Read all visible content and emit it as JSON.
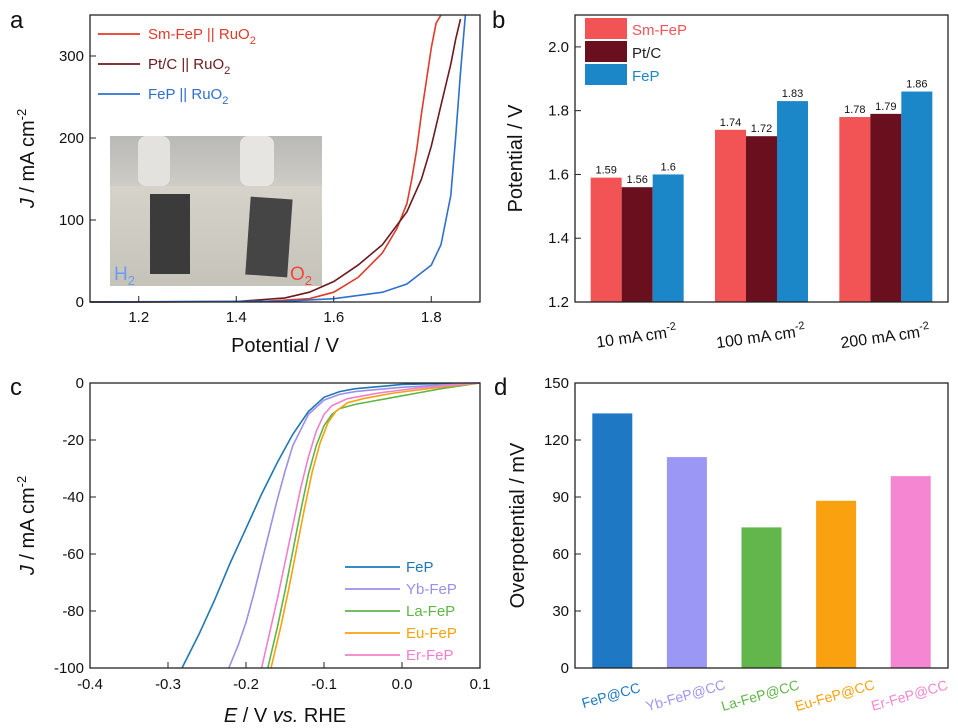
{
  "chart_data": [
    {
      "panel": "a",
      "type": "line",
      "xlabel": "Potential / V",
      "ylabel": {
        "italic": "J",
        "rest": " / mA cm",
        "sup": "-2"
      },
      "xlim": [
        1.1,
        1.9
      ],
      "ylim": [
        0,
        350
      ],
      "xticks": [
        "1.2",
        "1.4",
        "1.6",
        "1.8"
      ],
      "yticks": [
        "0",
        "100",
        "200",
        "300"
      ],
      "legend_position": "top-left",
      "series": [
        {
          "legend_main": "Sm-FeP || RuO",
          "legend_sub": "2",
          "color": "#e03a2a",
          "x": [
            1.1,
            1.45,
            1.55,
            1.6,
            1.65,
            1.7,
            1.73,
            1.75,
            1.76,
            1.77,
            1.78,
            1.79,
            1.8,
            1.81,
            1.82
          ],
          "y": [
            0,
            0.5,
            4,
            12,
            30,
            60,
            90,
            120,
            150,
            185,
            230,
            270,
            310,
            340,
            350
          ]
        },
        {
          "legend_main": "Pt/C || RuO",
          "legend_sub": "2",
          "color": "#6b1a1e",
          "x": [
            1.1,
            1.4,
            1.5,
            1.55,
            1.6,
            1.65,
            1.7,
            1.75,
            1.78,
            1.8,
            1.82,
            1.84,
            1.85,
            1.86
          ],
          "y": [
            0,
            0.5,
            5,
            12,
            25,
            45,
            70,
            110,
            150,
            190,
            240,
            290,
            320,
            345
          ]
        },
        {
          "legend_main": "FeP || RuO",
          "legend_sub": "2",
          "color": "#2f6fd0",
          "x": [
            1.1,
            1.5,
            1.6,
            1.7,
            1.75,
            1.8,
            1.82,
            1.84,
            1.85,
            1.86,
            1.87
          ],
          "y": [
            0,
            1,
            4,
            12,
            22,
            45,
            70,
            130,
            200,
            280,
            350
          ]
        }
      ],
      "inset": {
        "left_label": "H",
        "left_sub": "2",
        "right_label": "O",
        "right_sub": "2"
      }
    },
    {
      "panel": "b",
      "type": "bar",
      "ylabel": "Potential / V",
      "ylim": [
        1.2,
        2.1
      ],
      "yticks": [
        "1.2",
        "1.4",
        "1.6",
        "1.8",
        "2.0"
      ],
      "categories": [
        {
          "main": "10 mA cm",
          "sup": "-2"
        },
        {
          "main": "100 mA cm",
          "sup": "-2"
        },
        {
          "main": "200 mA cm",
          "sup": "-2"
        }
      ],
      "legend_position": "top-left",
      "series": [
        {
          "name": "Sm-FeP",
          "color": "#f25456",
          "values": [
            1.59,
            1.74,
            1.78
          ],
          "labels": [
            "1.59",
            "1.74",
            "1.78"
          ]
        },
        {
          "name": "Pt/C",
          "color": "#6a0f1e",
          "values": [
            1.56,
            1.72,
            1.79
          ],
          "labels": [
            "1.56",
            "1.72",
            "1.79"
          ]
        },
        {
          "name": "FeP",
          "color": "#1b87c9",
          "values": [
            1.6,
            1.83,
            1.86
          ],
          "labels": [
            "1.6",
            "1.83",
            "1.86"
          ]
        }
      ]
    },
    {
      "panel": "c",
      "type": "line",
      "xlabel": {
        "italic": "E",
        "rest": " / V ",
        "italic2": "vs.",
        "rest2": " RHE"
      },
      "ylabel": {
        "italic": "J",
        "rest": " / mA cm",
        "sup": "-2"
      },
      "xlim": [
        -0.4,
        0.1
      ],
      "ylim": [
        -100,
        0
      ],
      "xticks": [
        "-0.4",
        "-0.3",
        "-0.2",
        "-0.1",
        "0.0",
        "0.1"
      ],
      "yticks": [
        "0",
        "-20",
        "-40",
        "-60",
        "-80",
        "-100"
      ],
      "legend_position": "bottom-right",
      "series": [
        {
          "name": "FeP",
          "color": "#1f77b4",
          "x": [
            -0.282,
            -0.26,
            -0.24,
            -0.22,
            -0.2,
            -0.18,
            -0.16,
            -0.14,
            -0.12,
            -0.1,
            -0.08,
            -0.06,
            -0.04,
            -0.02,
            0.0,
            0.05,
            0.1
          ],
          "y": [
            -100,
            -88,
            -76,
            -63,
            -51,
            -39,
            -28,
            -18,
            -10,
            -5,
            -3,
            -2,
            -1.5,
            -1,
            -0.5,
            -0.2,
            0
          ]
        },
        {
          "name": "Yb-FeP",
          "color": "#9b8fe8",
          "x": [
            -0.222,
            -0.21,
            -0.2,
            -0.19,
            -0.18,
            -0.17,
            -0.16,
            -0.15,
            -0.14,
            -0.12,
            -0.1,
            -0.08,
            -0.06,
            -0.04,
            -0.02,
            0.0,
            0.05,
            0.1
          ],
          "y": [
            -100,
            -92,
            -84,
            -74,
            -63,
            -52,
            -41,
            -31,
            -22,
            -11,
            -6,
            -4,
            -3,
            -2.5,
            -2,
            -1.5,
            -0.7,
            0
          ]
        },
        {
          "name": "La-FeP",
          "color": "#5fb548",
          "x": [
            -0.172,
            -0.16,
            -0.15,
            -0.14,
            -0.13,
            -0.12,
            -0.11,
            -0.1,
            -0.09,
            -0.08,
            -0.06,
            -0.04,
            -0.02,
            0.0,
            0.02,
            0.05,
            0.1
          ],
          "y": [
            -100,
            -86,
            -73,
            -59,
            -45,
            -32,
            -22,
            -15,
            -11,
            -9,
            -7.5,
            -6.5,
            -5.5,
            -4.5,
            -3.5,
            -2,
            0
          ]
        },
        {
          "name": "Eu-FeP",
          "color": "#f5a20e",
          "x": [
            -0.168,
            -0.155,
            -0.145,
            -0.135,
            -0.125,
            -0.115,
            -0.105,
            -0.095,
            -0.085,
            -0.07,
            -0.05,
            -0.03,
            -0.01,
            0.01,
            0.04,
            0.07,
            0.1
          ],
          "y": [
            -100,
            -85,
            -72,
            -58,
            -44,
            -31,
            -21,
            -14,
            -10,
            -7,
            -5.5,
            -4.5,
            -3.5,
            -2.8,
            -1.8,
            -0.8,
            0
          ]
        },
        {
          "name": "Er-FeP",
          "color": "#f07fcf",
          "x": [
            -0.18,
            -0.17,
            -0.16,
            -0.15,
            -0.14,
            -0.13,
            -0.12,
            -0.11,
            -0.1,
            -0.09,
            -0.07,
            -0.05,
            -0.03,
            -0.01,
            0.02,
            0.06,
            0.1
          ],
          "y": [
            -100,
            -88,
            -76,
            -63,
            -50,
            -37,
            -26,
            -17,
            -11,
            -8,
            -5.5,
            -4.5,
            -3.5,
            -2.8,
            -1.8,
            -0.8,
            0
          ]
        }
      ]
    },
    {
      "panel": "d",
      "type": "bar",
      "ylabel": "Overpotential / mV",
      "ylim": [
        0,
        150
      ],
      "yticks": [
        "0",
        "30",
        "60",
        "90",
        "120",
        "150"
      ],
      "categories": [
        "FeP@CC",
        "Yb-FeP@CC",
        "La-FeP@CC",
        "Eu-FeP@CC",
        "Er-FeP@CC"
      ],
      "values": [
        134,
        111,
        74,
        88,
        101
      ],
      "colors": [
        "#1f78c4",
        "#9b97f4",
        "#62b64b",
        "#f9a10e",
        "#f586d2"
      ]
    }
  ],
  "panel_letters": [
    "a",
    "b",
    "c",
    "d"
  ]
}
